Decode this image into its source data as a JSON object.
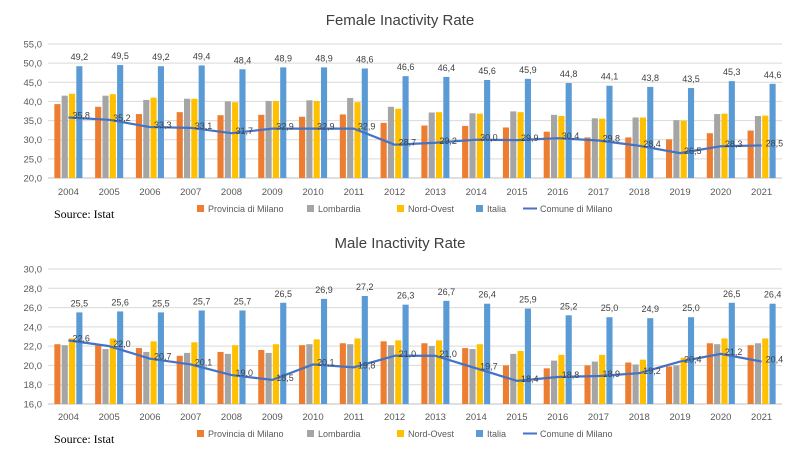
{
  "chart_data": [
    {
      "type": "bar",
      "title": "Female Inactivity Rate",
      "source": "Source: Istat",
      "categories": [
        "2004",
        "2005",
        "2006",
        "2007",
        "2008",
        "2009",
        "2010",
        "2011",
        "2012",
        "2013",
        "2014",
        "2015",
        "2016",
        "2017",
        "2018",
        "2019",
        "2020",
        "2021"
      ],
      "ylim": [
        20,
        55
      ],
      "yticks": [
        "20,0",
        "25,0",
        "30,0",
        "35,0",
        "40,0",
        "45,0",
        "50,0",
        "55,0"
      ],
      "legend_position": "bottom",
      "series": [
        {
          "name": "Provincia di Milano",
          "type": "bar",
          "color": "#ED7D31",
          "values": [
            39.3,
            38.6,
            36.7,
            37.2,
            36.4,
            36.5,
            36.0,
            36.6,
            34.4,
            33.7,
            33.6,
            33.2,
            32.1,
            30.6,
            30.6,
            30.1,
            31.7,
            32.4
          ]
        },
        {
          "name": "Lombardia",
          "type": "bar",
          "color": "#A5A5A5",
          "values": [
            41.5,
            41.5,
            40.4,
            40.7,
            40.0,
            40.1,
            40.3,
            40.9,
            38.6,
            37.1,
            36.9,
            37.4,
            36.5,
            35.6,
            35.8,
            35.1,
            36.7,
            36.2
          ]
        },
        {
          "name": "Nord-Ovest",
          "type": "bar",
          "color": "#FFC000",
          "values": [
            42.0,
            41.9,
            41.0,
            40.7,
            39.8,
            40.1,
            40.1,
            39.8,
            38.1,
            37.2,
            36.8,
            37.2,
            36.2,
            35.5,
            35.8,
            35.0,
            36.8,
            36.3
          ]
        },
        {
          "name": "Italia",
          "type": "bar",
          "color": "#5B9BD5",
          "values": [
            49.2,
            49.5,
            49.2,
            49.4,
            48.4,
            48.9,
            48.9,
            48.6,
            46.6,
            46.4,
            45.6,
            45.9,
            44.8,
            44.1,
            43.8,
            43.5,
            45.3,
            44.6
          ],
          "labels": [
            "49,2",
            "49,5",
            "49,2",
            "49,4",
            "48,4",
            "48,9",
            "48,9",
            "48,6",
            "46,6",
            "46,4",
            "45,6",
            "45,9",
            "44,8",
            "44,1",
            "43,8",
            "43,5",
            "45,3",
            "44,6"
          ]
        },
        {
          "name": "Comune di Milano",
          "type": "line",
          "color": "#4472C4",
          "values": [
            35.8,
            35.2,
            33.3,
            33.1,
            31.7,
            32.9,
            32.9,
            32.9,
            28.7,
            29.2,
            30.0,
            29.9,
            30.4,
            29.8,
            28.4,
            26.5,
            28.3,
            28.5
          ],
          "labels": [
            "35,8",
            "35,2",
            "33,3",
            "33,1",
            "31,7",
            "32,9",
            "32,9",
            "32,9",
            "28,7",
            "29,2",
            "30,0",
            "29,9",
            "30,4",
            "29,8",
            "28,4",
            "26,5",
            "28,3",
            "28,5"
          ]
        }
      ]
    },
    {
      "type": "bar",
      "title": "Male Inactivity Rate",
      "source": "Source: Istat",
      "categories": [
        "2004",
        "2005",
        "2006",
        "2007",
        "2008",
        "2009",
        "2010",
        "2011",
        "2012",
        "2013",
        "2014",
        "2015",
        "2016",
        "2017",
        "2018",
        "2019",
        "2020",
        "2021"
      ],
      "ylim": [
        16,
        30
      ],
      "yticks": [
        "16,0",
        "18,0",
        "20,0",
        "22,0",
        "24,0",
        "26,0",
        "28,0",
        "30,0"
      ],
      "legend_position": "bottom",
      "series": [
        {
          "name": "Provincia di Milano",
          "type": "bar",
          "color": "#ED7D31",
          "values": [
            22.2,
            22.1,
            21.8,
            21.0,
            21.4,
            21.6,
            22.1,
            22.3,
            22.5,
            22.3,
            21.8,
            20.0,
            19.7,
            20.0,
            20.3,
            19.9,
            22.3,
            22.1
          ]
        },
        {
          "name": "Lombardia",
          "type": "bar",
          "color": "#A5A5A5",
          "values": [
            22.1,
            21.7,
            21.4,
            21.3,
            21.2,
            21.3,
            22.2,
            22.2,
            22.1,
            22.0,
            21.7,
            21.2,
            20.5,
            20.4,
            20.1,
            20.0,
            22.2,
            22.3
          ]
        },
        {
          "name": "Nord-Ovest",
          "type": "bar",
          "color": "#FFC000",
          "values": [
            22.8,
            22.8,
            22.5,
            22.4,
            22.1,
            22.2,
            22.7,
            22.8,
            22.6,
            22.6,
            22.2,
            21.5,
            21.1,
            21.1,
            20.6,
            20.8,
            22.8,
            22.8
          ]
        },
        {
          "name": "Italia",
          "type": "bar",
          "color": "#5B9BD5",
          "values": [
            25.5,
            25.6,
            25.5,
            25.7,
            25.7,
            26.5,
            26.9,
            27.2,
            26.3,
            26.7,
            26.4,
            25.9,
            25.2,
            25.0,
            24.9,
            25.0,
            26.5,
            26.4
          ],
          "labels": [
            "25,5",
            "25,6",
            "25,5",
            "25,7",
            "25,7",
            "26,5",
            "26,9",
            "27,2",
            "26,3",
            "26,7",
            "26,4",
            "25,9",
            "25,2",
            "25,0",
            "24,9",
            "25,0",
            "26,5",
            "26,4"
          ]
        },
        {
          "name": "Comune di Milano",
          "type": "line",
          "color": "#4472C4",
          "values": [
            22.6,
            22.0,
            20.7,
            20.1,
            19.0,
            18.5,
            20.1,
            19.8,
            21.0,
            21.0,
            19.7,
            18.4,
            18.8,
            18.9,
            19.2,
            20.4,
            21.2,
            20.4
          ],
          "labels": [
            "22,6",
            "22,0",
            "20,7",
            "20,1",
            "19,0",
            "18,5",
            "20,1",
            "19,8",
            "21,0",
            "21,0",
            "19,7",
            "18,4",
            "18,8",
            "18,9",
            "19,2",
            "20,4",
            "21,2",
            "20,4"
          ]
        }
      ]
    }
  ]
}
